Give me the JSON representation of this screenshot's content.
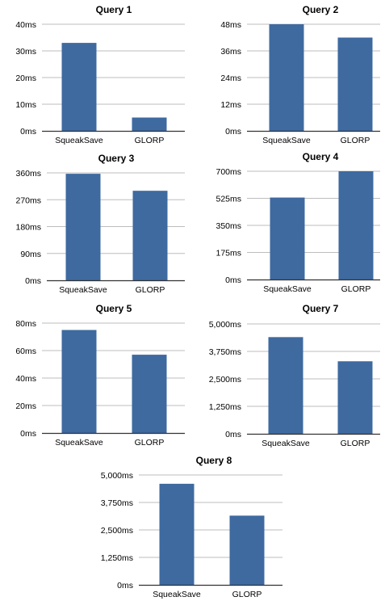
{
  "chart_data": [
    {
      "type": "bar",
      "title": "Query 1",
      "categories": [
        "SqueakSave",
        "GLORP"
      ],
      "values": [
        33,
        5
      ],
      "ylim": [
        0,
        40
      ],
      "yticks": [
        "0ms",
        "10ms",
        "20ms",
        "30ms",
        "40ms"
      ],
      "grid": true,
      "bar_color": "#3e6aa0"
    },
    {
      "type": "bar",
      "title": "Query 2",
      "categories": [
        "SqueakSave",
        "GLORP"
      ],
      "values": [
        48,
        42
      ],
      "ylim": [
        0,
        48
      ],
      "yticks": [
        "0ms",
        "12ms",
        "24ms",
        "36ms",
        "48ms"
      ],
      "grid": true,
      "bar_color": "#3e6aa0"
    },
    {
      "type": "bar",
      "title": "Query 3",
      "categories": [
        "SqueakSave",
        "GLORP"
      ],
      "values": [
        357,
        300
      ],
      "ylim": [
        0,
        360
      ],
      "yticks": [
        "0ms",
        "90ms",
        "180ms",
        "270ms",
        "360ms"
      ],
      "grid": true,
      "bar_color": "#3e6aa0"
    },
    {
      "type": "bar",
      "title": "Query 4",
      "categories": [
        "SqueakSave",
        "GLORP"
      ],
      "values": [
        530,
        700
      ],
      "ylim": [
        0,
        700
      ],
      "yticks": [
        "0ms",
        "175ms",
        "350ms",
        "525ms",
        "700ms"
      ],
      "grid": true,
      "bar_color": "#3e6aa0"
    },
    {
      "type": "bar",
      "title": "Query 5",
      "categories": [
        "SqueakSave",
        "GLORP"
      ],
      "values": [
        75,
        57
      ],
      "ylim": [
        0,
        80
      ],
      "yticks": [
        "0ms",
        "20ms",
        "40ms",
        "60ms",
        "80ms"
      ],
      "grid": true,
      "bar_color": "#3e6aa0"
    },
    {
      "type": "bar",
      "title": "Query 7",
      "categories": [
        "SqueakSave",
        "GLORP"
      ],
      "values": [
        4400,
        3300
      ],
      "ylim": [
        0,
        5000
      ],
      "yticks": [
        "0ms",
        "1,250ms",
        "2,500ms",
        "3,750ms",
        "5,000ms"
      ],
      "grid": true,
      "bar_color": "#3e6aa0"
    },
    {
      "type": "bar",
      "title": "Query 8",
      "categories": [
        "SqueakSave",
        "GLORP"
      ],
      "values": [
        4600,
        3150
      ],
      "ylim": [
        0,
        5000
      ],
      "yticks": [
        "0ms",
        "1,250ms",
        "2,500ms",
        "3,750ms",
        "5,000ms"
      ],
      "grid": true,
      "bar_color": "#3e6aa0"
    }
  ]
}
